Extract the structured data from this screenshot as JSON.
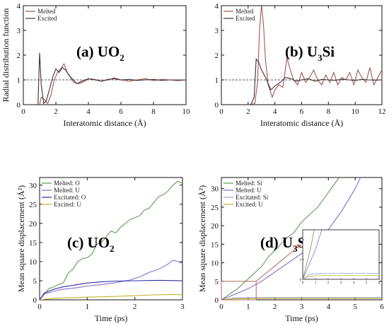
{
  "chart_data": [
    {
      "type": "line",
      "title": "(a) UO",
      "title_sub": "2",
      "xlabel": "Interatomic distance (Å)",
      "ylabel": "Radial distribution function",
      "xlim": [
        0,
        10
      ],
      "ylim": [
        0,
        4
      ],
      "xticks": [
        0,
        2,
        4,
        6,
        8,
        10
      ],
      "yticks": [
        0,
        1,
        2,
        3,
        4
      ],
      "reference_line": 1,
      "legend": "top-left",
      "series": [
        {
          "name": "Melted",
          "color": "#a0574f",
          "x": [
            1.0,
            1.1,
            1.3,
            1.5,
            1.7,
            1.9,
            2.1,
            2.3,
            2.5,
            2.7,
            2.9,
            3.1,
            3.4,
            3.7,
            4.0,
            4.4,
            4.8,
            5.2,
            5.6,
            6.0,
            6.5,
            7.0,
            7.5,
            8.0,
            8.5,
            9.0,
            9.5,
            10.0
          ],
          "y": [
            0.0,
            0.3,
            0.2,
            0.05,
            0.4,
            1.0,
            1.3,
            1.45,
            1.65,
            1.3,
            1.1,
            0.9,
            0.85,
            0.92,
            1.05,
            1.02,
            0.95,
            1.0,
            1.08,
            1.0,
            0.95,
            1.0,
            1.05,
            0.97,
            1.02,
            1.0,
            0.97,
            1.0
          ]
        },
        {
          "name": "Excited",
          "color": "#3d3036",
          "x": [
            0.9,
            1.0,
            1.1,
            1.25,
            1.4,
            1.6,
            1.8,
            2.0,
            2.2,
            2.4,
            2.6,
            2.8,
            3.0,
            3.3,
            3.6,
            4.0,
            4.4,
            4.8,
            5.2,
            5.6,
            6.0,
            6.5,
            7.0,
            7.5,
            8.0,
            8.5,
            9.0,
            9.5,
            10.0
          ],
          "y": [
            0.0,
            2.1,
            0.8,
            0.05,
            0.15,
            0.6,
            1.1,
            1.45,
            1.3,
            1.5,
            1.4,
            1.2,
            1.05,
            0.85,
            0.95,
            1.05,
            1.0,
            0.95,
            1.02,
            1.05,
            1.0,
            1.02,
            0.98,
            1.0,
            1.02,
            0.98,
            1.0,
            1.0,
            1.0
          ]
        }
      ]
    },
    {
      "type": "line",
      "title": "(b) U",
      "title_sub": "3",
      "title_tail": "Si",
      "xlabel": "Interatomic distance (Å)",
      "ylabel": "",
      "xlim": [
        0,
        12
      ],
      "ylim": [
        0,
        4
      ],
      "xticks": [
        0,
        2,
        4,
        6,
        8,
        10,
        12
      ],
      "yticks": [
        0,
        1,
        2,
        3,
        4
      ],
      "reference_line": 1,
      "legend": "top-left",
      "series": [
        {
          "name": "Melted",
          "color": "#a0574f",
          "x": [
            2.0,
            2.3,
            2.5,
            2.7,
            2.85,
            3.0,
            3.15,
            3.3,
            3.5,
            3.8,
            4.0,
            4.3,
            4.6,
            4.9,
            5.1,
            5.4,
            5.7,
            6.0,
            6.3,
            6.6,
            6.9,
            7.2,
            7.5,
            7.8,
            8.1,
            8.4,
            8.7,
            9.0,
            9.3,
            9.6,
            9.9,
            10.2,
            10.5,
            10.8,
            11.1,
            11.4,
            11.7,
            12.0
          ],
          "y": [
            0.0,
            0.02,
            0.05,
            0.9,
            3.0,
            4.05,
            3.2,
            1.8,
            0.8,
            0.3,
            0.6,
            0.8,
            0.7,
            1.9,
            1.5,
            1.0,
            0.8,
            1.3,
            0.9,
            1.1,
            1.4,
            1.0,
            0.8,
            1.2,
            0.9,
            1.3,
            0.8,
            1.1,
            1.0,
            1.3,
            0.8,
            1.4,
            1.1,
            0.9,
            1.5,
            0.8,
            1.1,
            1.4
          ]
        },
        {
          "name": "Excited",
          "color": "#3d3036",
          "x": [
            2.2,
            2.45,
            2.6,
            2.8,
            3.0,
            3.3,
            3.7,
            4.0,
            4.4,
            4.8,
            5.2,
            5.6,
            6.0,
            6.5,
            7.0,
            7.5,
            8.0,
            8.5,
            9.0,
            9.5,
            10.0,
            10.5,
            11.0,
            11.5,
            12.0
          ],
          "y": [
            0.0,
            0.3,
            1.85,
            1.7,
            1.4,
            1.1,
            0.6,
            0.75,
            0.9,
            1.1,
            1.05,
            0.95,
            1.0,
            1.05,
            0.95,
            1.02,
            1.0,
            0.98,
            1.03,
            1.0,
            0.98,
            1.02,
            1.0,
            0.99,
            1.0
          ]
        }
      ]
    },
    {
      "type": "line",
      "title": "(c) UO",
      "title_sub": "2",
      "xlabel": "Time (ps)",
      "ylabel": "Mean square displacement (Å²)",
      "xlim": [
        0,
        3
      ],
      "ylim": [
        0,
        32
      ],
      "xticks": [
        0,
        1,
        2,
        3
      ],
      "yticks": [
        0,
        5,
        10,
        15,
        20,
        25,
        30
      ],
      "legend": "top-left",
      "series": [
        {
          "name": "Melted: O",
          "color": "#5c9e52",
          "x": [
            0,
            0.1,
            0.2,
            0.3,
            0.4,
            0.5,
            0.6,
            0.7,
            0.8,
            0.9,
            1.0,
            1.1,
            1.2,
            1.3,
            1.4,
            1.5,
            1.6,
            1.7,
            1.8,
            1.9,
            2.0,
            2.1,
            2.2,
            2.3,
            2.4,
            2.5,
            2.6,
            2.7,
            2.8,
            2.9,
            3.0
          ],
          "y": [
            0,
            1.5,
            3,
            3.4,
            4,
            4.5,
            7,
            8,
            10,
            10.8,
            11,
            12,
            14.5,
            15,
            16.5,
            18,
            17.5,
            19,
            20,
            21,
            21.5,
            22,
            23.5,
            24,
            25.5,
            27,
            27.5,
            28.5,
            30,
            31,
            30.5
          ]
        },
        {
          "name": "Melted: U",
          "color": "#8a6ad0",
          "x": [
            0,
            0.1,
            0.3,
            0.5,
            0.8,
            1.0,
            1.3,
            1.6,
            1.9,
            2.1,
            2.3,
            2.5,
            2.7,
            2.8,
            2.9,
            3.0
          ],
          "y": [
            0,
            1.5,
            2.3,
            2.8,
            3.2,
            3.6,
            4.0,
            4.5,
            5.2,
            6.0,
            7.2,
            8.0,
            9.4,
            10.4,
            10.0,
            9.5
          ]
        },
        {
          "name": "Excitated: O",
          "color": "#2e2ea0",
          "x": [
            0,
            0.1,
            0.3,
            0.5,
            0.8,
            1.0,
            1.3,
            1.6,
            2.0,
            2.5,
            3.0
          ],
          "y": [
            0,
            1.8,
            2.8,
            3.4,
            4.0,
            4.4,
            4.7,
            4.9,
            5.0,
            5.1,
            5.0
          ]
        },
        {
          "name": "Excited: U",
          "color": "#c2b52a",
          "x": [
            0,
            0.2,
            0.5,
            0.8,
            1.0,
            1.3,
            1.6,
            2.0,
            2.4,
            2.8,
            3.0
          ],
          "y": [
            0,
            0.3,
            0.5,
            0.6,
            0.7,
            0.8,
            0.9,
            1.1,
            1.3,
            1.4,
            1.3
          ]
        }
      ]
    },
    {
      "type": "line",
      "title": "(d) U",
      "title_sub": "3",
      "title_tail": "Si",
      "xlabel": "Time (ps)",
      "ylabel": "Mean square displacement (Å²)",
      "xlim": [
        0,
        6
      ],
      "ylim": [
        0,
        33
      ],
      "xticks": [
        0,
        1,
        2,
        3,
        4,
        5,
        6
      ],
      "yticks": [
        0,
        5,
        10,
        15,
        20,
        25,
        30
      ],
      "legend": "top-left",
      "series": [
        {
          "name": "Melted: Si",
          "color": "#5c9e52",
          "x": [
            0,
            0.3,
            0.6,
            0.9,
            1.2,
            1.5,
            1.8,
            2.1,
            2.4,
            2.7,
            3.0,
            3.3,
            3.6,
            3.9,
            4.2,
            4.4
          ],
          "y": [
            0,
            1.5,
            3,
            5,
            7,
            9,
            12,
            14,
            16.5,
            18,
            21,
            23,
            25,
            28,
            31,
            33
          ]
        },
        {
          "name": "Melted: U",
          "color": "#8a6ad0",
          "x": [
            0,
            0.5,
            1.0,
            1.5,
            2.0,
            2.5,
            3.0,
            3.5,
            4.0,
            4.5,
            5.0,
            5.2
          ],
          "y": [
            0,
            1.5,
            3,
            5,
            7.5,
            10,
            12.5,
            15.5,
            19,
            24,
            30,
            33
          ]
        },
        {
          "name": "Excitated: Si",
          "color": "#8ea0d8",
          "x": [
            0,
            0.5,
            1,
            2,
            3,
            4,
            5,
            6
          ],
          "y": [
            0,
            0.5,
            0.55,
            0.6,
            0.6,
            0.6,
            0.6,
            0.6
          ]
        },
        {
          "name": "Excited: U",
          "color": "#c2b52a",
          "x": [
            0,
            0.5,
            1,
            2,
            3,
            4,
            5,
            6
          ],
          "y": [
            0,
            0.3,
            0.35,
            0.4,
            0.4,
            0.4,
            0.4,
            0.4
          ]
        }
      ],
      "inset": {
        "xlim": [
          0,
          6
        ],
        "ylim": [
          0,
          5
        ],
        "xticks": [
          0,
          1,
          2,
          3,
          4,
          5,
          6
        ],
        "yticks": [
          0,
          2,
          4
        ],
        "zoom_region": {
          "x": [
            0,
            1.3
          ],
          "y": [
            0,
            5
          ]
        }
      }
    }
  ]
}
